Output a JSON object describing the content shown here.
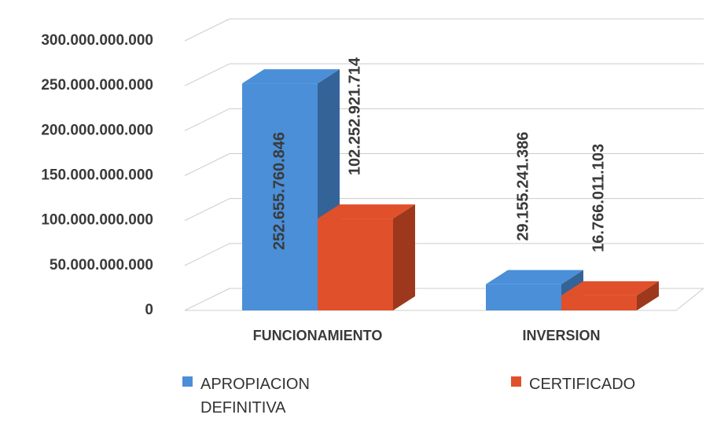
{
  "chart_data": {
    "type": "bar3d",
    "categories": [
      "FUNCIONAMIENTO",
      "INVERSION"
    ],
    "series": [
      {
        "name": "APROPIACION DEFINITIVA",
        "color": "#4a8fd8",
        "values": [
          252655760846,
          29155241386
        ],
        "value_labels": [
          "252.655.760.846",
          "29.155.241.386"
        ]
      },
      {
        "name": "CERTIFICADO",
        "color": "#e0502a",
        "values": [
          102252921714,
          16766011103
        ],
        "value_labels": [
          "102.252.921.714",
          "16.766.011.103"
        ]
      }
    ],
    "ylim": [
      0,
      300000000000
    ],
    "yticks": [
      0,
      {
        "value": 50000000000,
        "label": "50.000.000.000"
      },
      {
        "value": 100000000000,
        "label": "100.000.000.000"
      },
      {
        "value": 150000000000,
        "label": "150.000.000.000"
      },
      {
        "value": 200000000000,
        "label": "200.000.000.000"
      },
      {
        "value": 250000000000,
        "label": "250.000.000.000"
      },
      {
        "value": 300000000000,
        "label": "300.000.000.000"
      }
    ],
    "grid": true
  }
}
